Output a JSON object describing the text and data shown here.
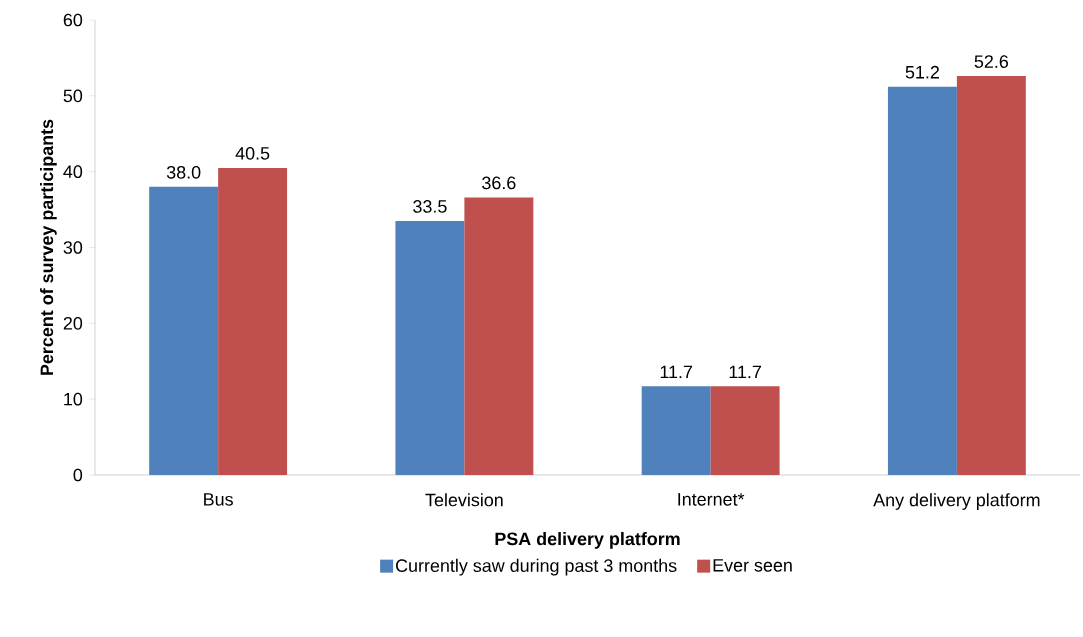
{
  "chart_data": {
    "type": "bar",
    "xlabel": "PSA delivery platform",
    "ylabel": "Percent of survey participants",
    "categories": [
      "Bus",
      "Television",
      "Internet*",
      "Any delivery platform"
    ],
    "series": [
      {
        "name": "Currently saw during past 3 months",
        "color": "#4f81bd",
        "values": [
          38.0,
          33.5,
          11.7,
          51.2
        ],
        "value_labels": [
          "38.0",
          "33.5",
          "11.7",
          "51.2"
        ]
      },
      {
        "name": "Ever seen",
        "color": "#c0504d",
        "values": [
          40.5,
          36.6,
          11.7,
          52.6
        ],
        "value_labels": [
          "40.5",
          "36.6",
          "11.7",
          "52.6"
        ]
      }
    ],
    "ylim": [
      0,
      60
    ],
    "yticks": [
      0,
      10,
      20,
      30,
      40,
      50,
      60
    ],
    "legend": "bottom"
  }
}
